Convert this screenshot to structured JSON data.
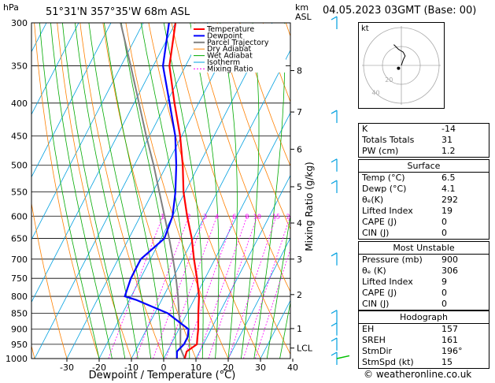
{
  "header": {
    "units": "hPa",
    "location": "51°31'N  357°35'W  68m  ASL",
    "alt_units_top": "km",
    "alt_units_bottom": "ASL",
    "datetime": "04.05.2023  03GMT  (Base: 00)"
  },
  "chart_data": {
    "type": "skew-t",
    "xlabel": "Dewpoint / Temperature (°C)",
    "ylabel": "hPa",
    "right_label": "Mixing Ratio (g/kg)",
    "xticks": [
      -30,
      -20,
      -10,
      0,
      10,
      20,
      30,
      40
    ],
    "pressure_levels": [
      300,
      350,
      400,
      450,
      500,
      550,
      600,
      650,
      700,
      750,
      800,
      850,
      900,
      950,
      1000
    ],
    "km_ticks": [
      {
        "km": "8",
        "p": 356
      },
      {
        "km": "7",
        "p": 413
      },
      {
        "km": "6",
        "p": 472
      },
      {
        "km": "5",
        "p": 540
      },
      {
        "km": "4",
        "p": 615
      },
      {
        "km": "3",
        "p": 700
      },
      {
        "km": "2",
        "p": 795
      },
      {
        "km": "1",
        "p": 898
      },
      {
        "km": "LCL",
        "p": 963
      }
    ],
    "mixing_ratio_labels": [
      "1",
      "2",
      "3",
      "4",
      "6",
      "8",
      "10",
      "15",
      "20",
      "25"
    ],
    "mixing_ratio_values": [
      1,
      2,
      3,
      4,
      6,
      8,
      10,
      15,
      20,
      25
    ],
    "legend": [
      "Temperature",
      "Dewpoint",
      "Parcel Trajectory",
      "Dry Adiabat",
      "Wet Adiabat",
      "Isotherm",
      "Mixing Ratio"
    ],
    "legend_colors": [
      "#ff0000",
      "#0000ff",
      "#808080",
      "#ff8000",
      "#00aa00",
      "#00a0e0",
      "#ff00ff"
    ],
    "temperature": [
      {
        "p": 1000,
        "t": 6.5
      },
      {
        "p": 975,
        "t": 6.0
      },
      {
        "p": 950,
        "t": 8.0
      },
      {
        "p": 925,
        "t": 7.0
      },
      {
        "p": 900,
        "t": 6.0
      },
      {
        "p": 850,
        "t": 3.5
      },
      {
        "p": 800,
        "t": 1.0
      },
      {
        "p": 750,
        "t": -2.5
      },
      {
        "p": 700,
        "t": -6.5
      },
      {
        "p": 650,
        "t": -10.5
      },
      {
        "p": 600,
        "t": -15.5
      },
      {
        "p": 550,
        "t": -20.5
      },
      {
        "p": 500,
        "t": -25.0
      },
      {
        "p": 450,
        "t": -30.5
      },
      {
        "p": 400,
        "t": -37.5
      },
      {
        "p": 350,
        "t": -45.0
      },
      {
        "p": 300,
        "t": -50.0
      }
    ],
    "dewpoint": [
      {
        "p": 1000,
        "t": 4.1
      },
      {
        "p": 975,
        "t": 3.0
      },
      {
        "p": 950,
        "t": 4.0
      },
      {
        "p": 925,
        "t": 4.0
      },
      {
        "p": 900,
        "t": 3.0
      },
      {
        "p": 850,
        "t": -6.0
      },
      {
        "p": 810,
        "t": -18.0
      },
      {
        "p": 800,
        "t": -22.0
      },
      {
        "p": 750,
        "t": -23.0
      },
      {
        "p": 700,
        "t": -23.0
      },
      {
        "p": 650,
        "t": -19.0
      },
      {
        "p": 600,
        "t": -20.0
      },
      {
        "p": 550,
        "t": -23.0
      },
      {
        "p": 500,
        "t": -27.0
      },
      {
        "p": 450,
        "t": -32.0
      },
      {
        "p": 400,
        "t": -39.0
      },
      {
        "p": 350,
        "t": -47.0
      },
      {
        "p": 300,
        "t": -52.0
      }
    ],
    "parcel": [
      {
        "p": 1000,
        "t": 6.5
      },
      {
        "p": 963,
        "t": 3.5
      },
      {
        "p": 900,
        "t": 0.5
      },
      {
        "p": 850,
        "t": -2.5
      },
      {
        "p": 800,
        "t": -5.5
      },
      {
        "p": 750,
        "t": -9.0
      },
      {
        "p": 700,
        "t": -13.0
      },
      {
        "p": 650,
        "t": -17.5
      },
      {
        "p": 600,
        "t": -22.5
      },
      {
        "p": 550,
        "t": -28.0
      },
      {
        "p": 500,
        "t": -34.0
      },
      {
        "p": 450,
        "t": -41.0
      },
      {
        "p": 400,
        "t": -48.5
      },
      {
        "p": 350,
        "t": -57.0
      },
      {
        "p": 300,
        "t": -67.0
      }
    ]
  },
  "hodograph": {
    "label": "kt",
    "ring_labels": [
      "20",
      "40"
    ],
    "trace": [
      [
        0,
        0
      ],
      [
        2,
        6
      ],
      [
        4,
        10
      ],
      [
        2,
        14
      ],
      [
        -3,
        17
      ],
      [
        -6,
        20
      ],
      [
        -8,
        22
      ]
    ],
    "storm_motion": [
      -3,
      -3
    ]
  },
  "indices": {
    "rows": [
      {
        "label": "K",
        "value": "-14"
      },
      {
        "label": "Totals Totals",
        "value": "31"
      },
      {
        "label": "PW (cm)",
        "value": "1.2"
      }
    ]
  },
  "surface": {
    "title": "Surface",
    "rows": [
      {
        "label": "Temp (°C)",
        "value": "6.5"
      },
      {
        "label": "Dewp (°C)",
        "value": "4.1"
      },
      {
        "label": "θₑ(K)",
        "value": "292"
      },
      {
        "label": "Lifted Index",
        "value": "19"
      },
      {
        "label": "CAPE (J)",
        "value": "0"
      },
      {
        "label": "CIN (J)",
        "value": "0"
      }
    ]
  },
  "most_unstable": {
    "title": "Most Unstable",
    "rows": [
      {
        "label": "Pressure (mb)",
        "value": "900"
      },
      {
        "label": "θₑ (K)",
        "value": "306"
      },
      {
        "label": "Lifted Index",
        "value": "9"
      },
      {
        "label": "CAPE (J)",
        "value": "0"
      },
      {
        "label": "CIN (J)",
        "value": "0"
      }
    ]
  },
  "hodograph_table": {
    "title": "Hodograph",
    "rows": [
      {
        "label": "EH",
        "value": "157"
      },
      {
        "label": "SREH",
        "value": "161"
      },
      {
        "label": "StmDir",
        "value": "196°"
      },
      {
        "label": "StmSpd (kt)",
        "value": "15"
      }
    ]
  },
  "footer": {
    "copyright": "© weatheronline.co.uk"
  }
}
